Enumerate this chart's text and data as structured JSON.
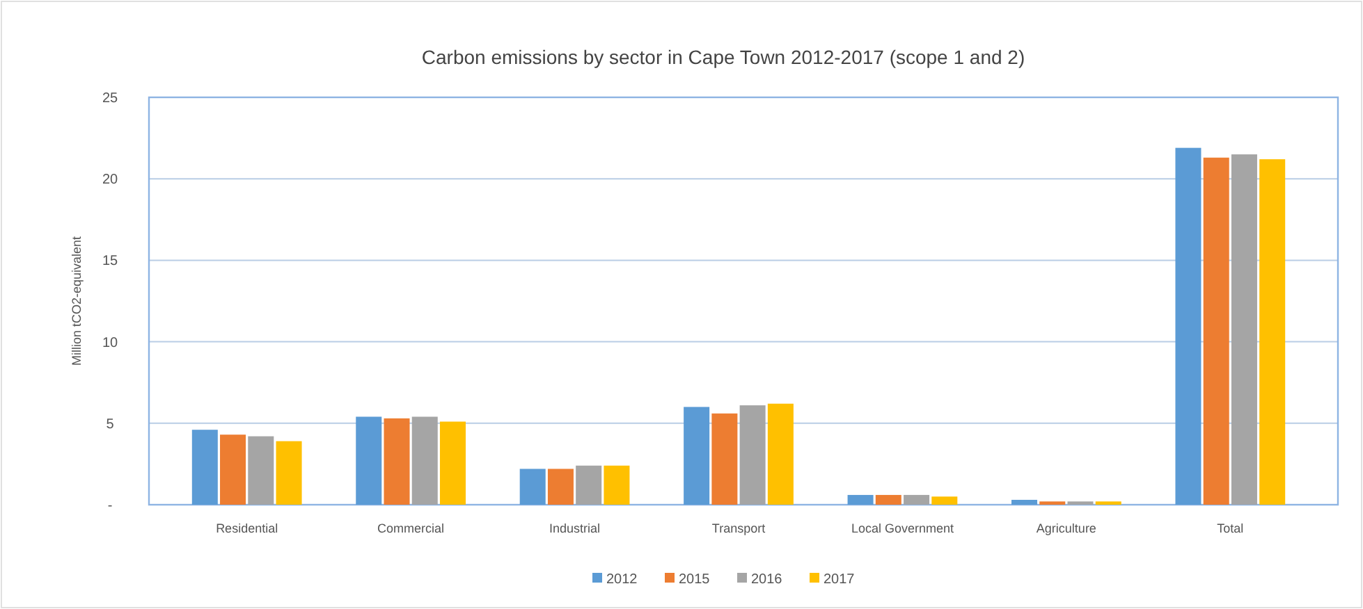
{
  "chart_data": {
    "type": "bar",
    "title": "Carbon emissions by sector in Cape Town 2012-2017 (scope 1 and 2)",
    "ylabel": "Million tCO2-equivalent",
    "categories": [
      "Residential",
      "Commercial",
      "Industrial",
      "Transport",
      "Local Government",
      "Agriculture",
      "Total"
    ],
    "series": [
      {
        "name": "2012",
        "color": "#5b9bd5",
        "values": [
          4.6,
          5.4,
          2.2,
          6.0,
          0.6,
          0.3,
          21.9
        ]
      },
      {
        "name": "2015",
        "color": "#ed7d31",
        "values": [
          4.3,
          5.3,
          2.2,
          5.6,
          0.6,
          0.2,
          21.3
        ]
      },
      {
        "name": "2016",
        "color": "#a5a5a5",
        "values": [
          4.2,
          5.4,
          2.4,
          6.1,
          0.6,
          0.2,
          21.5
        ]
      },
      {
        "name": "2017",
        "color": "#ffc000",
        "values": [
          3.9,
          5.1,
          2.4,
          6.2,
          0.5,
          0.2,
          21.2
        ]
      }
    ],
    "ylim": [
      0,
      25
    ],
    "yticks": [
      {
        "value": 0,
        "label": "-"
      },
      5,
      10,
      15,
      20,
      25
    ],
    "grid": "y",
    "legend": "bottom"
  }
}
